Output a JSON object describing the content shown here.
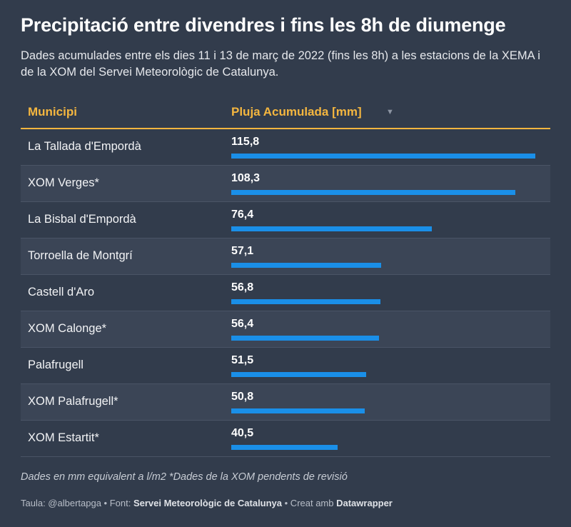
{
  "title": "Precipitació entre divendres i fins les 8h de diumenge",
  "subtitle": "Dades acumulades entre els dies 11 i 13 de març de 2022 (fins les 8h) a les estacions de la XEMA i de la XOM del Servei Meteorològic de Catalunya.",
  "table": {
    "header": {
      "col1": "Municipi",
      "col2": "Pluja Acumulada [mm]",
      "sort_icon": "▼"
    }
  },
  "chart_data": {
    "type": "table",
    "columns": [
      "Municipi",
      "Pluja Acumulada [mm]"
    ],
    "max": 115.8,
    "rows": [
      {
        "name": "La Tallada d'Empordà",
        "value": 115.8,
        "label": "115,8"
      },
      {
        "name": "XOM Verges*",
        "value": 108.3,
        "label": "108,3"
      },
      {
        "name": "La Bisbal d'Empordà",
        "value": 76.4,
        "label": "76,4"
      },
      {
        "name": "Torroella de Montgrí",
        "value": 57.1,
        "label": "57,1"
      },
      {
        "name": "Castell d'Aro",
        "value": 56.8,
        "label": "56,8"
      },
      {
        "name": "XOM Calonge*",
        "value": 56.4,
        "label": "56,4"
      },
      {
        "name": "Palafrugell",
        "value": 51.5,
        "label": "51,5"
      },
      {
        "name": "XOM Palafrugell*",
        "value": 50.8,
        "label": "50,8"
      },
      {
        "name": "XOM Estartit*",
        "value": 40.5,
        "label": "40,5"
      }
    ],
    "bar_color": "#1a8fe8"
  },
  "notes": "Dades en mm equivalent a l/m2 *Dades de la XOM pendents de revisió",
  "credits": {
    "prefix": "Taula: @albertapga • Font: ",
    "source": "Servei Meteorològic de Catalunya",
    "middle": " • Creat amb ",
    "tool": "Datawrapper"
  }
}
